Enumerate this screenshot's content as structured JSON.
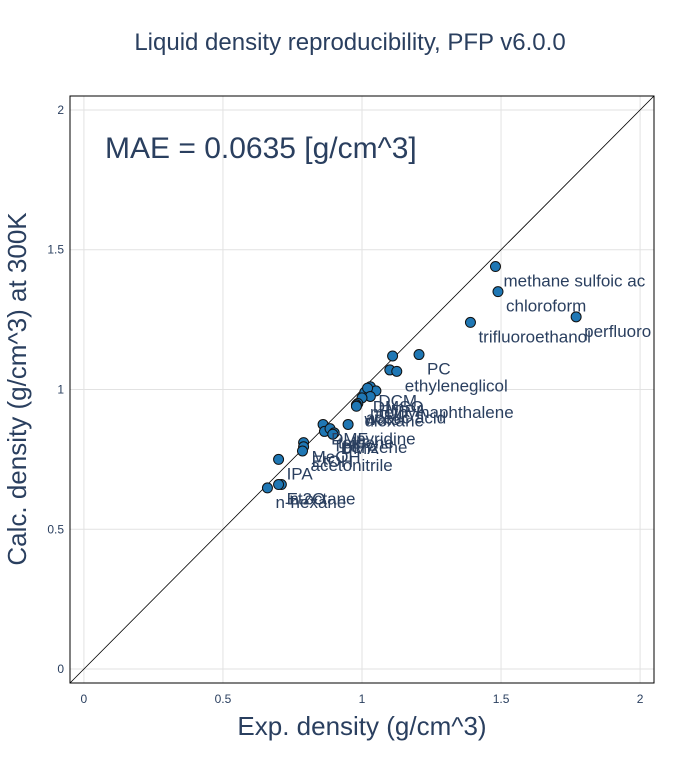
{
  "chart_data": {
    "type": "scatter",
    "title": "Liquid density reproducibility, PFP v6.0.0",
    "xlabel": "Exp. density (g/cm^3)",
    "ylabel": "Calc. density (g/cm^3) at 300K",
    "xlim": [
      -0.05,
      2.05
    ],
    "ylim": [
      -0.05,
      2.05
    ],
    "xticks": [
      0,
      0.5,
      1,
      1.5,
      2
    ],
    "yticks": [
      0,
      0.5,
      1,
      1.5,
      2
    ],
    "xtick_labels": [
      "0",
      "0.5",
      "1",
      "1.5",
      "2"
    ],
    "ytick_labels": [
      "0",
      "0.5",
      "1",
      "1.5",
      "2"
    ],
    "grid": true,
    "reference_line": "y = x",
    "annotation": "MAE = 0.0635 [g/cm^3]",
    "point_color": "#1f77b4",
    "points": [
      {
        "x": 1.48,
        "y": 1.44,
        "label": "methane sulfoic ac"
      },
      {
        "x": 1.489,
        "y": 1.35,
        "label": "chloroform"
      },
      {
        "x": 1.39,
        "y": 1.24,
        "label": "trifluoroethanol"
      },
      {
        "x": 1.77,
        "y": 1.26,
        "label": "perfluoro"
      },
      {
        "x": 1.11,
        "y": 1.12,
        "label": ""
      },
      {
        "x": 1.205,
        "y": 1.125,
        "label": "PC"
      },
      {
        "x": 1.1,
        "y": 1.07,
        "label": ""
      },
      {
        "x": 1.125,
        "y": 1.065,
        "label": "ethyleneglicol"
      },
      {
        "x": 1.01,
        "y": 0.99,
        "label": "DMSO"
      },
      {
        "x": 1.03,
        "y": 1.01,
        "label": "DCM"
      },
      {
        "x": 1.05,
        "y": 0.995,
        "label": ""
      },
      {
        "x": 1.02,
        "y": 1.005,
        "label": ""
      },
      {
        "x": 1.03,
        "y": 0.975,
        "label": "HMPA"
      },
      {
        "x": 1.0,
        "y": 0.97,
        "label": "methylnaphthalene"
      },
      {
        "x": 0.985,
        "y": 0.95,
        "label": "acetic acid"
      },
      {
        "x": 0.98,
        "y": 0.945,
        "label": "water"
      },
      {
        "x": 0.98,
        "y": 0.94,
        "label": "dioxane"
      },
      {
        "x": 0.95,
        "y": 0.875,
        "label": "pyridine"
      },
      {
        "x": 0.86,
        "y": 0.875,
        "label": "DMF"
      },
      {
        "x": 0.865,
        "y": 0.85,
        "label": "THF"
      },
      {
        "x": 0.885,
        "y": 0.86,
        "label": "toluene"
      },
      {
        "x": 0.9,
        "y": 0.845,
        "label": "benzene"
      },
      {
        "x": 0.895,
        "y": 0.84,
        "label": "DMA"
      },
      {
        "x": 0.79,
        "y": 0.81,
        "label": "MeOH"
      },
      {
        "x": 0.79,
        "y": 0.795,
        "label": "EtOH"
      },
      {
        "x": 0.7,
        "y": 0.75,
        "label": "IPA"
      },
      {
        "x": 0.786,
        "y": 0.78,
        "label": "acetonitrile"
      },
      {
        "x": 0.71,
        "y": 0.66,
        "label": "n-octane"
      },
      {
        "x": 0.66,
        "y": 0.648,
        "label": "n-hexane"
      },
      {
        "x": 0.7,
        "y": 0.66,
        "label": "Et2O"
      }
    ]
  }
}
